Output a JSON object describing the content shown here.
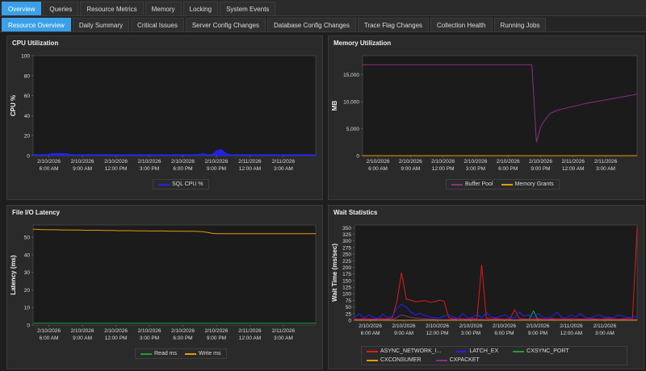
{
  "tabs_primary": [
    {
      "label": "Overview",
      "active": true
    },
    {
      "label": "Queries",
      "active": false
    },
    {
      "label": "Resource Metrics",
      "active": false
    },
    {
      "label": "Memory",
      "active": false
    },
    {
      "label": "Locking",
      "active": false
    },
    {
      "label": "System Events",
      "active": false
    }
  ],
  "tabs_secondary": [
    {
      "label": "Resource Overview",
      "active": true
    },
    {
      "label": "Daily Summary",
      "active": false
    },
    {
      "label": "Critical Issues",
      "active": false
    },
    {
      "label": "Server Config Changes",
      "active": false
    },
    {
      "label": "Database Config Changes",
      "active": false
    },
    {
      "label": "Trace Flag Changes",
      "active": false
    },
    {
      "label": "Collection Health",
      "active": false
    },
    {
      "label": "Running Jobs",
      "active": false
    }
  ],
  "x_ticks": [
    "2/10/2026\n6:00 AM",
    "2/10/2026\n9:00 AM",
    "2/10/2026\n12:00 PM",
    "2/10/2026\n3:00 PM",
    "2/10/2026\n6:00 PM",
    "2/10/2026\n9:00 PM",
    "2/11/2026\n12:00 AM",
    "2/11/2026\n3:00 AM"
  ],
  "chart_data": [
    {
      "id": "cpu",
      "type": "area",
      "title": "CPU Utilization",
      "ylabel": "CPU %",
      "ylim": [
        0,
        100
      ],
      "yticks": [
        0,
        20,
        40,
        60,
        80,
        100
      ],
      "series": [
        {
          "name": "SQL CPU %",
          "color": "#2222ff",
          "values": [
            1,
            1,
            1,
            1,
            2,
            2,
            2,
            2,
            1,
            1,
            1,
            1,
            1,
            1,
            1,
            1,
            1,
            1,
            1,
            1,
            1,
            1,
            1,
            1,
            1,
            1,
            1,
            1,
            1,
            1,
            1,
            1,
            1,
            1,
            1,
            1,
            2,
            1,
            1,
            5,
            6,
            2,
            1,
            1,
            1,
            1,
            1,
            1,
            1,
            1,
            1,
            1,
            1,
            1,
            1,
            1,
            1,
            1,
            1,
            1,
            1
          ]
        }
      ]
    },
    {
      "id": "memory",
      "type": "line",
      "title": "Memory Utilization",
      "ylabel": "MB",
      "ylim": [
        0,
        18500
      ],
      "yticks": [
        0,
        5000,
        10000,
        15000
      ],
      "ytick_labels": [
        "0",
        "5,000",
        "10,000",
        "15,000"
      ],
      "series": [
        {
          "name": "Buffer Pool",
          "color": "#8b2f8b",
          "values": [
            16800,
            16800,
            16800,
            16800,
            16800,
            16800,
            16800,
            16800,
            16800,
            16800,
            16800,
            16800,
            16800,
            16800,
            16800,
            16800,
            16800,
            16800,
            16800,
            16800,
            16800,
            16800,
            16800,
            16800,
            16800,
            16800,
            16800,
            16800,
            16800,
            16800,
            16800,
            16800,
            16800,
            16800,
            16800,
            16800,
            16800,
            16800,
            2500,
            5500,
            6800,
            7800,
            8200,
            8500,
            8700,
            8900,
            9100,
            9300,
            9500,
            9700,
            9850,
            10000,
            10150,
            10300,
            10450,
            10600,
            10750,
            10900,
            11050,
            11200,
            11400
          ]
        },
        {
          "name": "Memory Grants",
          "color": "#e59b00",
          "values": [
            0,
            0,
            0,
            0,
            0,
            0,
            0,
            0,
            0,
            0,
            0,
            0,
            0,
            0,
            0,
            0,
            0,
            0,
            0,
            0,
            0,
            0,
            0,
            0,
            0,
            0,
            0,
            0,
            0,
            0,
            0,
            0,
            0,
            0,
            0,
            0,
            0,
            0,
            0,
            0,
            0,
            0,
            0,
            0,
            0,
            0,
            0,
            0,
            0,
            0,
            0,
            0,
            0,
            0,
            0,
            0,
            0,
            0,
            0,
            0,
            0
          ]
        }
      ]
    },
    {
      "id": "fileio",
      "type": "line",
      "title": "File I/O Latency",
      "ylabel": "Latency (ms)",
      "ylim": [
        0,
        57
      ],
      "yticks": [
        0,
        10,
        20,
        30,
        40,
        50
      ],
      "series": [
        {
          "name": "Read ms",
          "color": "#1f9e3a",
          "values": [
            1,
            1,
            1,
            1,
            1,
            1,
            1,
            1,
            1,
            1,
            1,
            1,
            1,
            1,
            1,
            1,
            1,
            1,
            1,
            1,
            1,
            1,
            1,
            1,
            1,
            1,
            1,
            1,
            1,
            1,
            1,
            1,
            1,
            1,
            1,
            1,
            1,
            1,
            1,
            1,
            1,
            1,
            1,
            1,
            1,
            1,
            1,
            1,
            1,
            1,
            1,
            1,
            1,
            1,
            1,
            1,
            1,
            1,
            1,
            1,
            1
          ]
        },
        {
          "name": "Write ms",
          "color": "#e59b00",
          "values": [
            54.5,
            54.5,
            54.4,
            54.4,
            54.3,
            54.3,
            54.2,
            54.2,
            54.1,
            54.1,
            54.1,
            54,
            54,
            54,
            54,
            53.9,
            53.9,
            53.9,
            53.8,
            53.8,
            53.8,
            53.8,
            53.7,
            53.7,
            53.7,
            53.6,
            53.6,
            53.6,
            53.6,
            53.5,
            53.5,
            53.5,
            53.5,
            53.4,
            53.4,
            53.3,
            53.2,
            52.8,
            52.3,
            52.1,
            52.1,
            52.1,
            52.1,
            52.1,
            52.1,
            52.1,
            52.1,
            52.1,
            52.1,
            52.1,
            52.1,
            52.1,
            52.1,
            52.1,
            52.1,
            52.1,
            52.1,
            52.1,
            52.1,
            52.1,
            52.1
          ]
        }
      ]
    },
    {
      "id": "waits",
      "type": "line",
      "title": "Wait Statistics",
      "ylabel": "Wait Time (ms/sec)",
      "ylim": [
        0,
        360
      ],
      "yticks": [
        0,
        25,
        50,
        75,
        100,
        125,
        150,
        175,
        200,
        225,
        250,
        275,
        300,
        325,
        350
      ],
      "series": [
        {
          "name": "ASYNC_NETWORK_I...",
          "color": "#e01b1b",
          "values": [
            5,
            4,
            6,
            5,
            4,
            5,
            6,
            5,
            8,
            70,
            180,
            80,
            75,
            70,
            72,
            74,
            68,
            70,
            76,
            72,
            10,
            5,
            6,
            5,
            4,
            6,
            5,
            210,
            8,
            5,
            6,
            5,
            4,
            5,
            40,
            6,
            5,
            4,
            5,
            6,
            5,
            4,
            6,
            5,
            5,
            4,
            6,
            5,
            4,
            5,
            6,
            5,
            4,
            5,
            6,
            5,
            4,
            5,
            6,
            5,
            350
          ]
        },
        {
          "name": "LATCH_EX",
          "color": "#2222ff",
          "values": [
            10,
            25,
            8,
            20,
            12,
            6,
            22,
            10,
            15,
            45,
            60,
            50,
            30,
            20,
            25,
            18,
            12,
            10,
            8,
            15,
            20,
            12,
            6,
            25,
            8,
            10,
            22,
            8,
            30,
            12,
            10,
            15,
            20,
            8,
            10,
            30,
            15,
            20,
            10,
            25,
            12,
            8,
            15,
            30,
            10,
            8,
            20,
            12,
            25,
            10,
            8,
            15,
            20,
            10,
            12,
            8,
            20,
            15,
            10,
            12,
            15
          ]
        },
        {
          "name": "CXSYNC_PORT",
          "color": "#1f9e3a",
          "values": [
            0,
            0,
            0,
            0,
            0,
            0,
            0,
            0,
            0,
            0,
            0,
            0,
            0,
            0,
            0,
            0,
            0,
            0,
            0,
            0,
            0,
            0,
            0,
            0,
            0,
            0,
            0,
            0,
            0,
            0,
            0,
            0,
            0,
            0,
            0,
            0,
            0,
            0,
            35,
            0,
            0,
            0,
            0,
            0,
            0,
            0,
            0,
            0,
            0,
            0,
            0,
            0,
            0,
            0,
            0,
            0,
            0,
            0,
            0,
            0,
            0
          ]
        },
        {
          "name": "CXCONSUMER",
          "color": "#e59b00",
          "values": [
            0,
            0,
            0,
            0,
            0,
            0,
            0,
            0,
            0,
            0,
            0,
            0,
            0,
            0,
            0,
            0,
            0,
            0,
            0,
            0,
            0,
            0,
            0,
            0,
            0,
            0,
            0,
            0,
            0,
            0,
            0,
            0,
            0,
            0,
            0,
            0,
            0,
            0,
            0,
            0,
            0,
            0,
            0,
            0,
            0,
            0,
            0,
            0,
            0,
            0,
            0,
            0,
            0,
            0,
            0,
            0,
            0,
            0,
            0,
            0,
            0
          ]
        },
        {
          "name": "CXPACKET",
          "color": "#8b2f8b",
          "values": [
            2,
            3,
            2,
            2,
            3,
            2,
            2,
            3,
            2,
            10,
            20,
            15,
            10,
            8,
            6,
            5,
            4,
            3,
            2,
            2,
            2,
            3,
            2,
            2,
            3,
            2,
            2,
            3,
            2,
            2,
            3,
            2,
            2,
            3,
            2,
            2,
            3,
            2,
            2,
            3,
            2,
            2,
            3,
            2,
            2,
            3,
            2,
            2,
            3,
            2,
            2,
            3,
            2,
            2,
            3,
            2,
            2,
            3,
            2,
            2,
            3
          ]
        }
      ]
    }
  ]
}
